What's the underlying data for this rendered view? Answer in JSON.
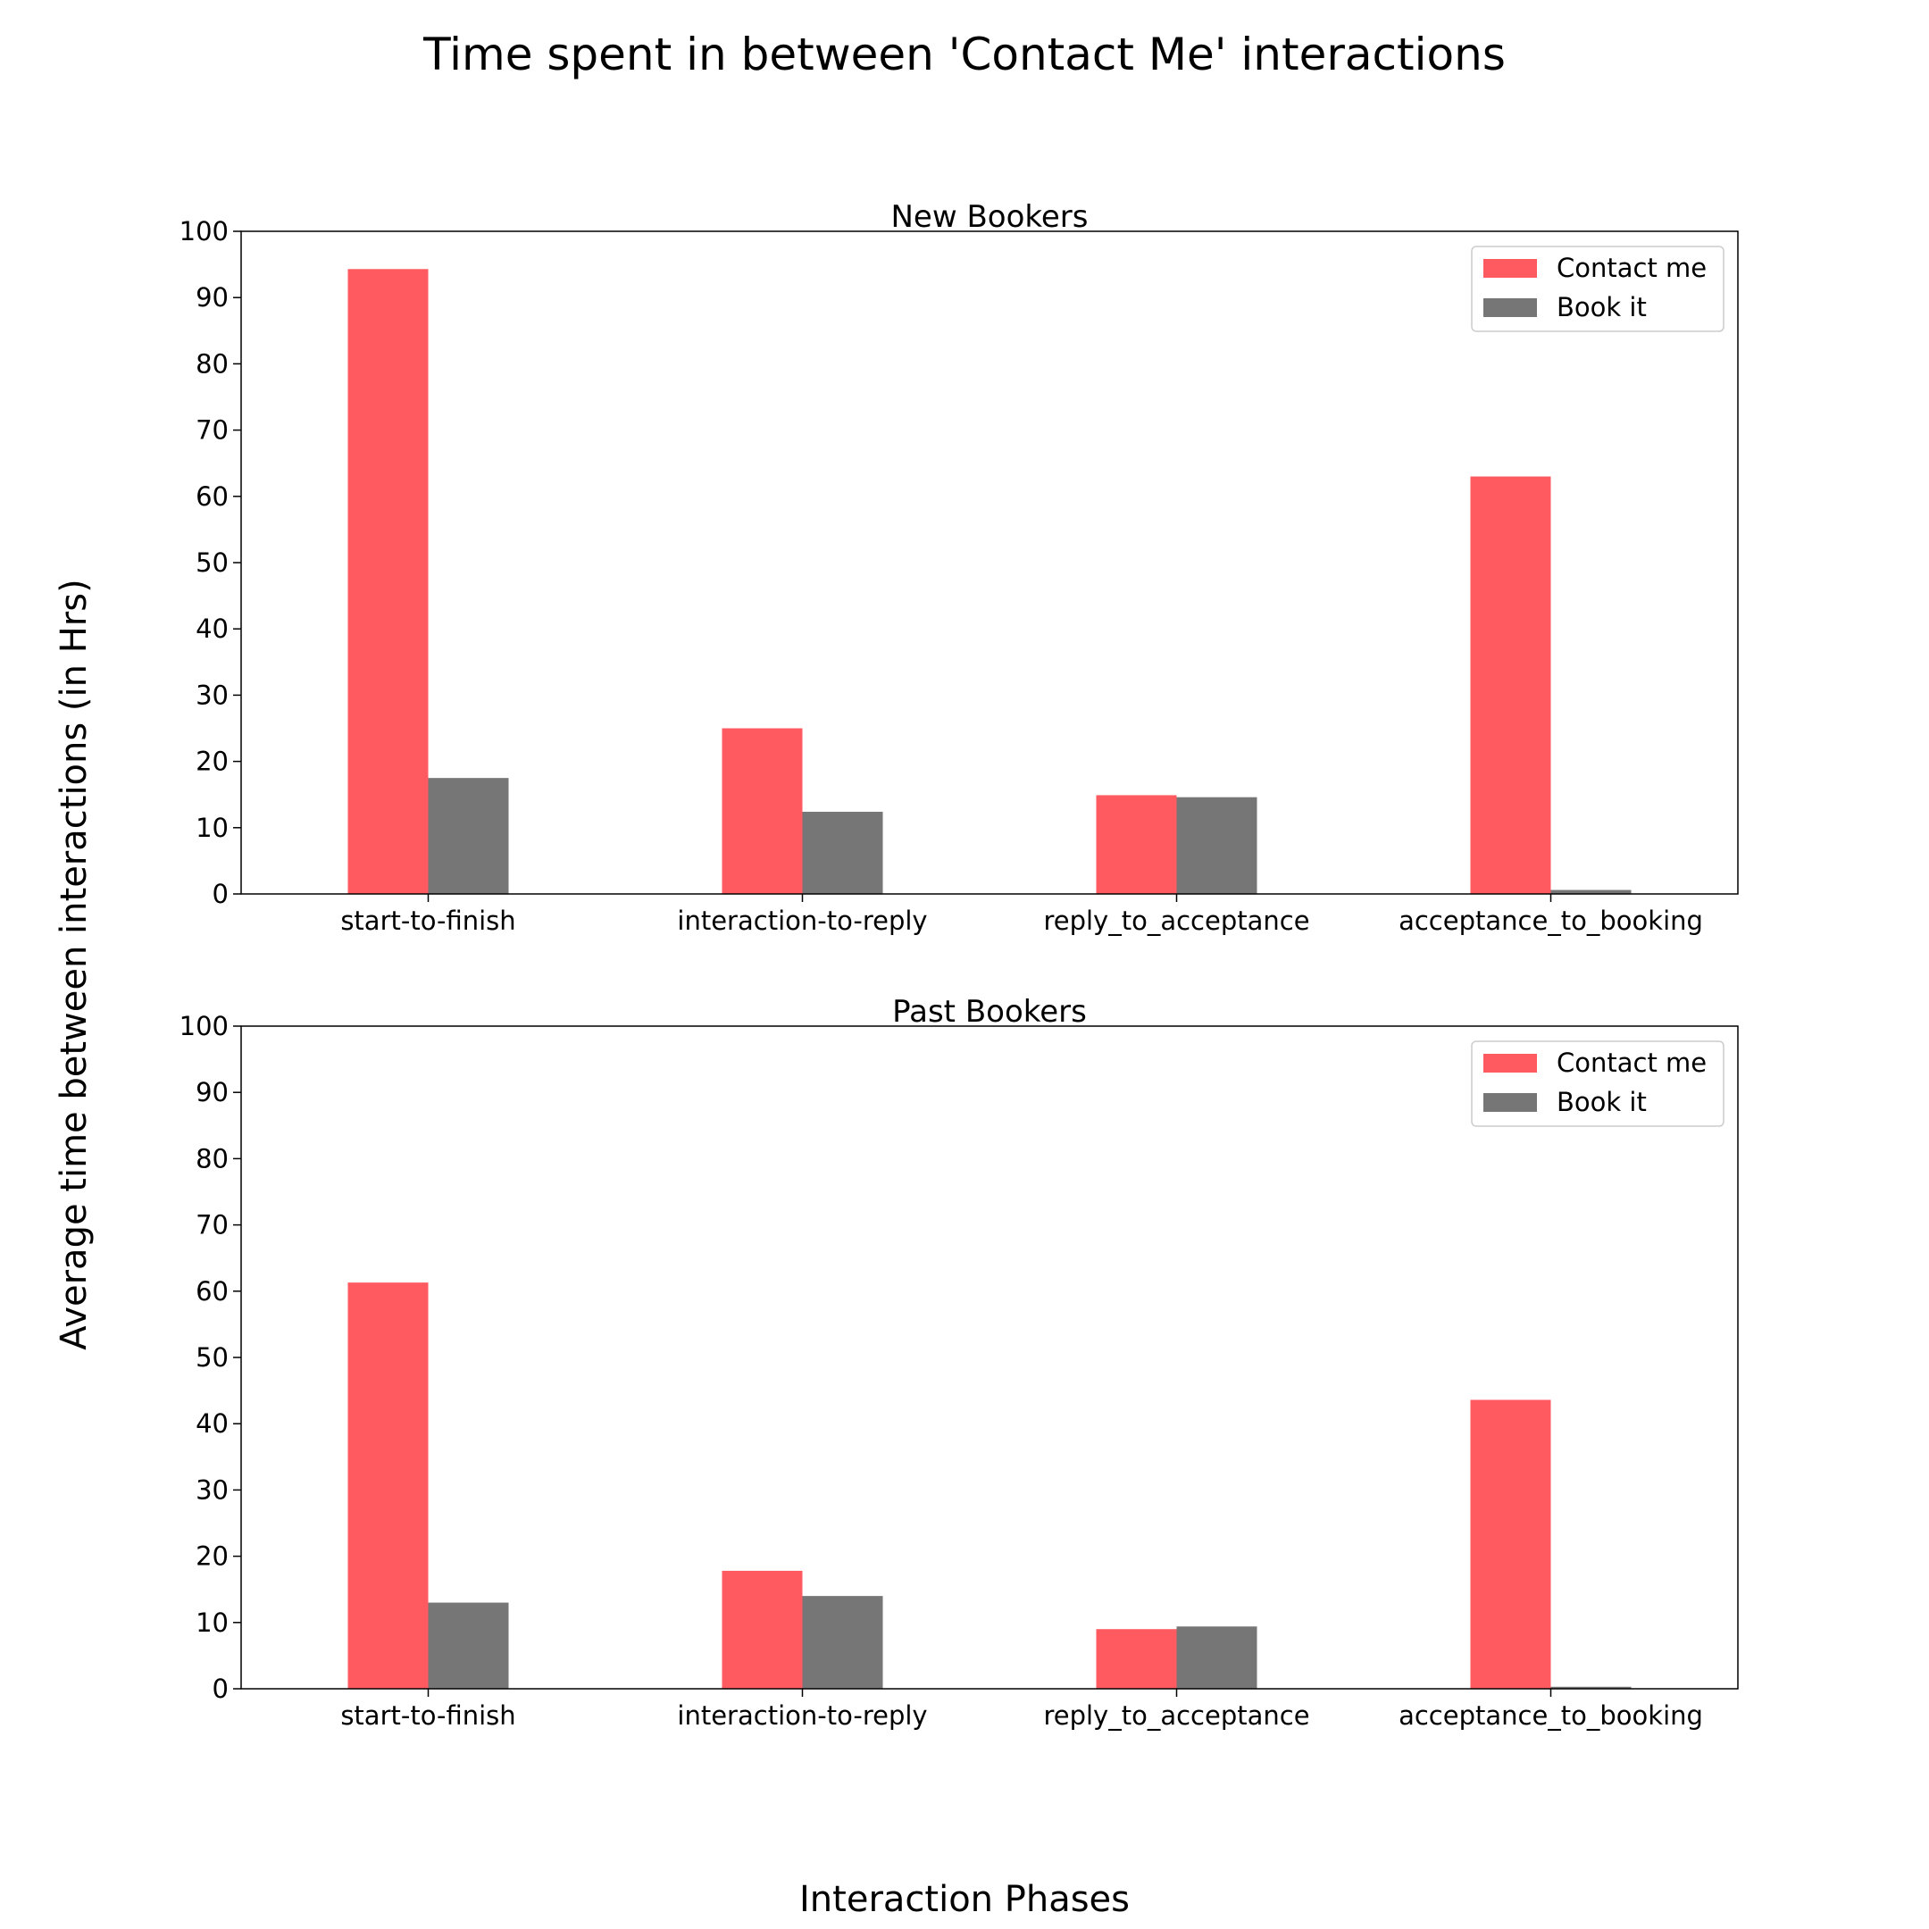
{
  "chart_data": {
    "type": "bar",
    "title": "Time spent in between 'Contact Me' interactions",
    "xlabel": "Interaction Phases",
    "ylabel": "Average time between interactions (in Hrs)",
    "ylim": [
      0,
      100
    ],
    "yticks": [
      0,
      10,
      20,
      30,
      40,
      50,
      60,
      70,
      80,
      90,
      100
    ],
    "legend_position": "top-right",
    "grid": false,
    "colors": {
      "Contact me": "#ff5a60",
      "Book it": "#767676"
    },
    "categories": [
      "start-to-finish",
      "interaction-to-reply",
      "reply_to_acceptance",
      "acceptance_to_booking"
    ],
    "panels": [
      {
        "title": "New Bookers",
        "series": [
          {
            "name": "Contact me",
            "values": [
              94.3,
              25.0,
              14.9,
              63.0
            ]
          },
          {
            "name": "Book it",
            "values": [
              17.5,
              12.4,
              14.6,
              0.6
            ]
          }
        ]
      },
      {
        "title": "Past Bookers",
        "series": [
          {
            "name": "Contact me",
            "values": [
              61.3,
              17.8,
              9.0,
              43.6
            ]
          },
          {
            "name": "Book it",
            "values": [
              13.0,
              14.0,
              9.4,
              0.3
            ]
          }
        ]
      }
    ]
  }
}
